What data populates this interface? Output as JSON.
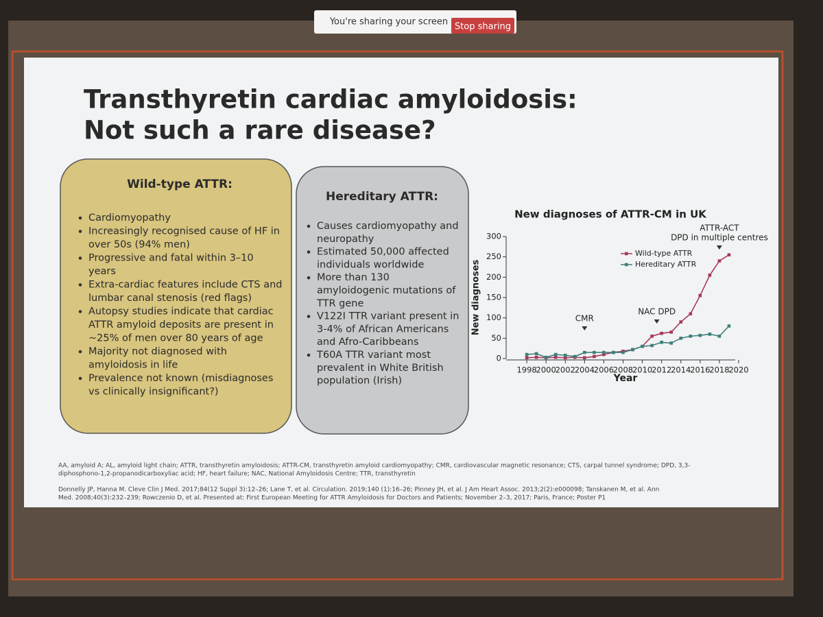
{
  "share_bar": {
    "message": "You're sharing your screen",
    "button": "Stop sharing"
  },
  "slide": {
    "title": [
      "Transthyretin cardiac amyloidosis:",
      "Not such a rare disease?"
    ],
    "wild_type": {
      "heading": "Wild-type ATTR:",
      "bullets": [
        [
          "Cardiomyopathy"
        ],
        [
          "Increasingly recognised cause of HF in",
          "over 50s (94% men)"
        ],
        [
          "Progressive and fatal within 3–10",
          "years"
        ],
        [
          "Extra-cardiac features include CTS and",
          "lumbar canal stenosis (red flags)"
        ],
        [
          "Autopsy studies indicate that cardiac",
          "ATTR amyloid deposits are present in",
          "~25% of men over 80 years of age"
        ],
        [
          "Majority not diagnosed with",
          "amyloidosis in life"
        ],
        [
          "Prevalence not known (misdiagnoses",
          "vs clinically insignificant?)"
        ]
      ]
    },
    "hereditary": {
      "heading": "Hereditary ATTR:",
      "bullets": [
        [
          "Causes cardiomyopathy and",
          "neuropathy"
        ],
        [
          "Estimated 50,000 affected",
          "individuals worldwide"
        ],
        [
          "More than 130",
          "amyloidogenic mutations of",
          "TTR gene"
        ],
        [
          "V122I TTR variant present in",
          "3-4% of African Americans",
          "and Afro-Caribbeans"
        ],
        [
          "T60A TTR variant most",
          "prevalent in White British",
          "population (Irish)"
        ]
      ]
    },
    "abbreviations": [
      "AA, amyloid A; AL, amyloid light chain; ATTR, transthyretin amyloidosis; ATTR-CM, transthyretin amyloid cardiomyopathy; CMR, cardiovascular magnetic resonance; CTS, carpal tunnel syndrome; DPD, 3,3-",
      "diphosphono-1,2-propanodicarboxyliac acid; HF, heart failure; NAC, National Amyloidosis Centre; TTR, transthyretin"
    ],
    "references": [
      "Donnelly JP, Hanna M. Cleve Clin J Med. 2017;84(12 Suppl 3):12–26; Lane T, et al. Circulation. 2019;140 (1):16–26; Pinney JH, et al. J Am Heart Assoc. 2013;2(2):e000098; Tanskanen M, et al. Ann",
      "Med. 2008;40(3):232–239; Rowczenio D, et al. Presented at: First European Meeting for ATTR Amyloidosis for Doctors and Patients; November 2–3, 2017; Paris, France; Poster P1"
    ]
  },
  "chart_data": {
    "type": "line",
    "title": "New diagnoses of ATTR-CM in UK",
    "x_label": "Year",
    "y_label": "New diagnoses",
    "x": [
      1998,
      1999,
      2000,
      2001,
      2002,
      2003,
      2004,
      2005,
      2006,
      2007,
      2008,
      2009,
      2010,
      2011,
      2012,
      2013,
      2014,
      2015,
      2016,
      2017,
      2018,
      2019
    ],
    "series": [
      {
        "name": "Wild-type ATTR",
        "color": "#a8385a",
        "values": [
          2,
          3,
          2,
          3,
          2,
          3,
          2,
          5,
          10,
          15,
          18,
          22,
          30,
          55,
          62,
          65,
          90,
          110,
          155,
          205,
          240,
          255
        ]
      },
      {
        "name": "Hereditary ATTR",
        "color": "#3f7f7a",
        "values": [
          10,
          12,
          3,
          10,
          8,
          5,
          15,
          15,
          15,
          15,
          15,
          22,
          30,
          32,
          40,
          38,
          50,
          55,
          57,
          60,
          55,
          80
        ]
      }
    ],
    "annotations": [
      {
        "lines": [
          "CMR"
        ],
        "x": 2004
      },
      {
        "lines": [
          "NAC DPD"
        ],
        "x": 2011.5
      },
      {
        "lines": [
          "ATTR-ACT",
          "DPD in multiple centres"
        ],
        "x": 2018
      }
    ],
    "xlim": [
      1996,
      2020
    ],
    "xticks": [
      1998,
      2000,
      2002,
      2004,
      2006,
      2008,
      2010,
      2012,
      2014,
      2016,
      2018,
      2020
    ],
    "ylim": [
      0,
      300
    ],
    "yticks": [
      0,
      50,
      100,
      150,
      200,
      250,
      300
    ]
  }
}
